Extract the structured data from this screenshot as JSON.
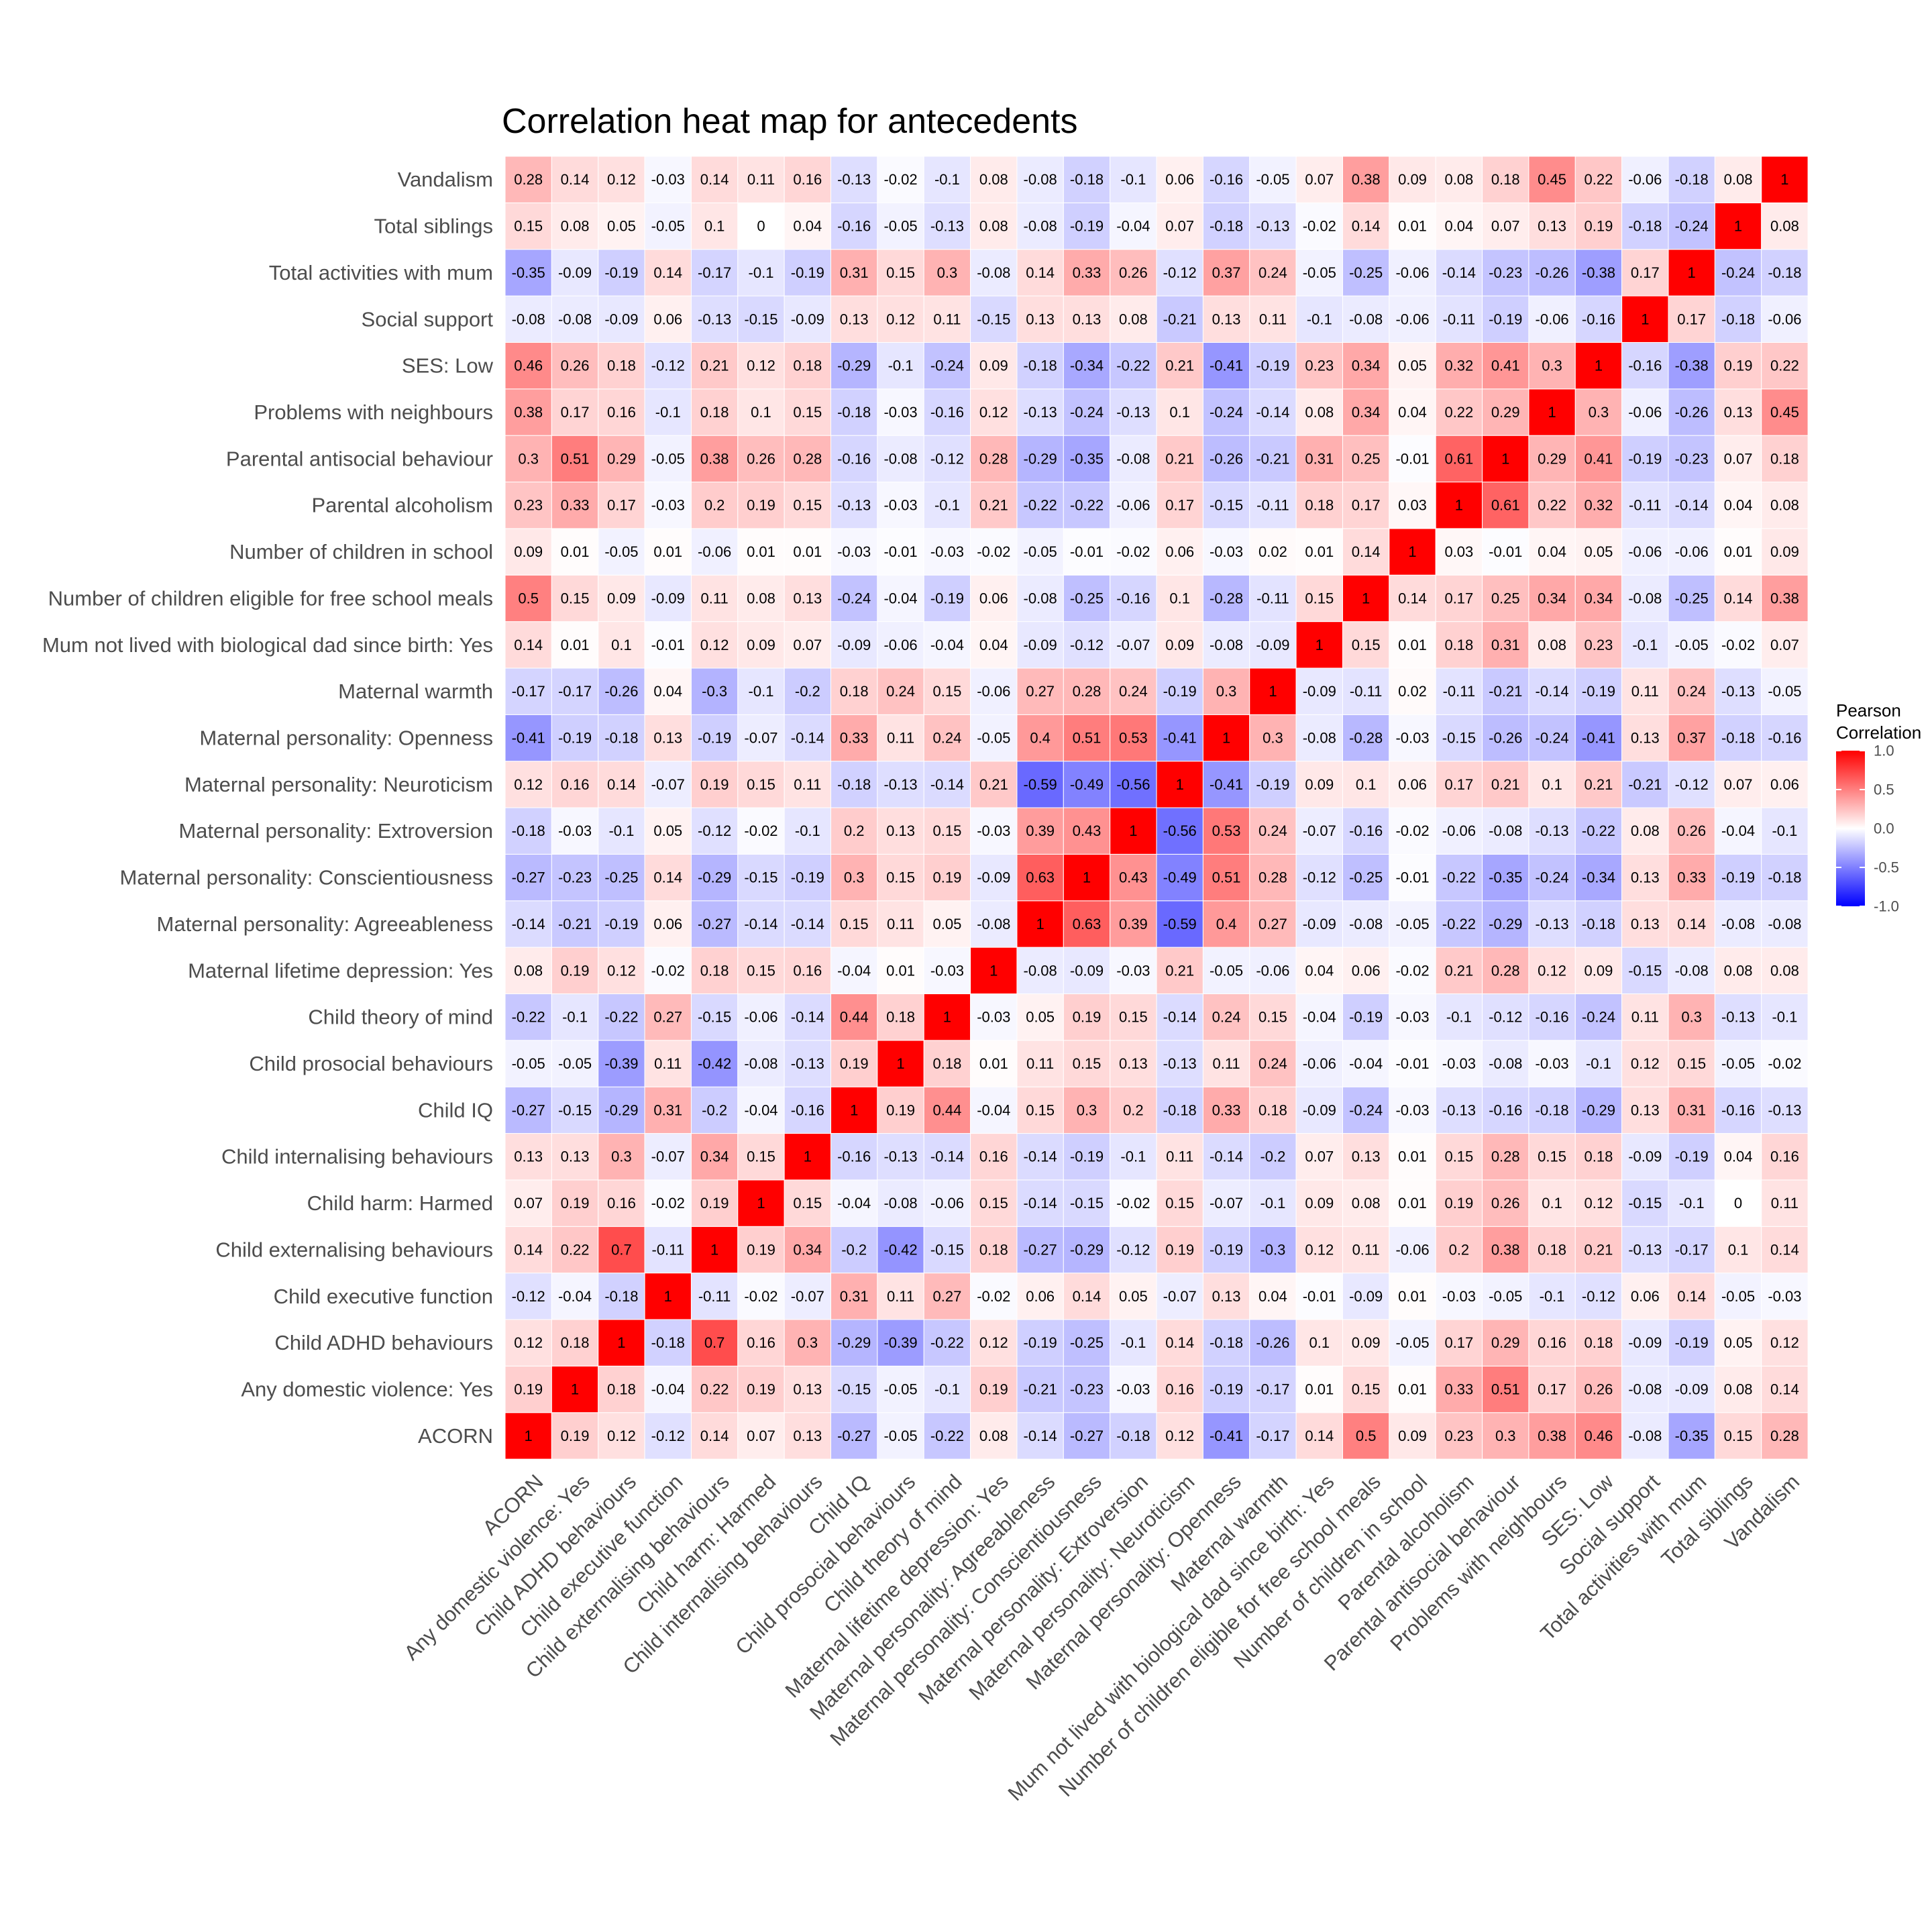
{
  "chart_data": {
    "type": "heatmap",
    "title": "Correlation heat map for antecedents",
    "variables": [
      "ACORN",
      "Any domestic violence: Yes",
      "Child ADHD behaviours",
      "Child executive function",
      "Child externalising behaviours",
      "Child harm: Harmed",
      "Child internalising behaviours",
      "Child IQ",
      "Child prosocial behaviours",
      "Child theory of mind",
      "Maternal lifetime depression: Yes",
      "Maternal personality: Agreeableness",
      "Maternal personality: Conscientiousness",
      "Maternal personality: Extroversion",
      "Maternal personality: Neuroticism",
      "Maternal personality: Openness",
      "Maternal warmth",
      "Mum not lived with biological dad since birth: Yes",
      "Number of children eligible for free school meals",
      "Number of children in school",
      "Parental alcoholism",
      "Parental antisocial behaviour",
      "Problems with neighbours",
      "SES: Low",
      "Social support",
      "Total activities with mum",
      "Total siblings",
      "Vandalism"
    ],
    "matrix": [
      [
        1,
        0.19,
        0.12,
        -0.12,
        0.14,
        0.07,
        0.13,
        -0.27,
        -0.05,
        -0.22,
        0.08,
        -0.14,
        -0.27,
        -0.18,
        0.12,
        -0.41,
        -0.17,
        0.14,
        0.5,
        0.09,
        0.23,
        0.3,
        0.38,
        0.46,
        -0.08,
        -0.35,
        0.15,
        0.28
      ],
      [
        0.19,
        1,
        0.18,
        -0.04,
        0.22,
        0.19,
        0.13,
        -0.15,
        -0.05,
        -0.1,
        0.19,
        -0.21,
        -0.23,
        -0.03,
        0.16,
        -0.19,
        -0.17,
        0.01,
        0.15,
        0.01,
        0.33,
        0.51,
        0.17,
        0.26,
        -0.08,
        -0.09,
        0.08,
        0.14
      ],
      [
        0.12,
        0.18,
        1,
        -0.18,
        0.7,
        0.16,
        0.3,
        -0.29,
        -0.39,
        -0.22,
        0.12,
        -0.19,
        -0.25,
        -0.1,
        0.14,
        -0.18,
        -0.26,
        0.1,
        0.09,
        -0.05,
        0.17,
        0.29,
        0.16,
        0.18,
        -0.09,
        -0.19,
        0.05,
        0.12
      ],
      [
        -0.12,
        -0.04,
        -0.18,
        1,
        -0.11,
        -0.02,
        -0.07,
        0.31,
        0.11,
        0.27,
        -0.02,
        0.06,
        0.14,
        0.05,
        -0.07,
        0.13,
        0.04,
        -0.01,
        -0.09,
        0.01,
        -0.03,
        -0.05,
        -0.1,
        -0.12,
        0.06,
        0.14,
        -0.05,
        -0.03
      ],
      [
        0.14,
        0.22,
        0.7,
        -0.11,
        1,
        0.19,
        0.34,
        -0.2,
        -0.42,
        -0.15,
        0.18,
        -0.27,
        -0.29,
        -0.12,
        0.19,
        -0.19,
        -0.3,
        0.12,
        0.11,
        -0.06,
        0.2,
        0.38,
        0.18,
        0.21,
        -0.13,
        -0.17,
        0.1,
        0.14
      ],
      [
        0.07,
        0.19,
        0.16,
        -0.02,
        0.19,
        1,
        0.15,
        -0.04,
        -0.08,
        -0.06,
        0.15,
        -0.14,
        -0.15,
        -0.02,
        0.15,
        -0.07,
        -0.1,
        0.09,
        0.08,
        0.01,
        0.19,
        0.26,
        0.1,
        0.12,
        -0.15,
        -0.1,
        0,
        0.11
      ],
      [
        0.13,
        0.13,
        0.3,
        -0.07,
        0.34,
        0.15,
        1,
        -0.16,
        -0.13,
        -0.14,
        0.16,
        -0.14,
        -0.19,
        -0.1,
        0.11,
        -0.14,
        -0.2,
        0.07,
        0.13,
        0.01,
        0.15,
        0.28,
        0.15,
        0.18,
        -0.09,
        -0.19,
        0.04,
        0.16
      ],
      [
        -0.27,
        -0.15,
        -0.29,
        0.31,
        -0.2,
        -0.04,
        -0.16,
        1,
        0.19,
        0.44,
        -0.04,
        0.15,
        0.3,
        0.2,
        -0.18,
        0.33,
        0.18,
        -0.09,
        -0.24,
        -0.03,
        -0.13,
        -0.16,
        -0.18,
        -0.29,
        0.13,
        0.31,
        -0.16,
        -0.13
      ],
      [
        -0.05,
        -0.05,
        -0.39,
        0.11,
        -0.42,
        -0.08,
        -0.13,
        0.19,
        1,
        0.18,
        0.01,
        0.11,
        0.15,
        0.13,
        -0.13,
        0.11,
        0.24,
        -0.06,
        -0.04,
        -0.01,
        -0.03,
        -0.08,
        -0.03,
        -0.1,
        0.12,
        0.15,
        -0.05,
        -0.02
      ],
      [
        -0.22,
        -0.1,
        -0.22,
        0.27,
        -0.15,
        -0.06,
        -0.14,
        0.44,
        0.18,
        1,
        -0.03,
        0.05,
        0.19,
        0.15,
        -0.14,
        0.24,
        0.15,
        -0.04,
        -0.19,
        -0.03,
        -0.1,
        -0.12,
        -0.16,
        -0.24,
        0.11,
        0.3,
        -0.13,
        -0.1
      ],
      [
        0.08,
        0.19,
        0.12,
        -0.02,
        0.18,
        0.15,
        0.16,
        -0.04,
        0.01,
        -0.03,
        1,
        -0.08,
        -0.09,
        -0.03,
        0.21,
        -0.05,
        -0.06,
        0.04,
        0.06,
        -0.02,
        0.21,
        0.28,
        0.12,
        0.09,
        -0.15,
        -0.08,
        0.08,
        0.08
      ],
      [
        -0.14,
        -0.21,
        -0.19,
        0.06,
        -0.27,
        -0.14,
        -0.14,
        0.15,
        0.11,
        0.05,
        -0.08,
        1,
        0.63,
        0.39,
        -0.59,
        0.4,
        0.27,
        -0.09,
        -0.08,
        -0.05,
        -0.22,
        -0.29,
        -0.13,
        -0.18,
        0.13,
        0.14,
        -0.08,
        -0.08
      ],
      [
        -0.27,
        -0.23,
        -0.25,
        0.14,
        -0.29,
        -0.15,
        -0.19,
        0.3,
        0.15,
        0.19,
        -0.09,
        0.63,
        1,
        0.43,
        -0.49,
        0.51,
        0.28,
        -0.12,
        -0.25,
        -0.01,
        -0.22,
        -0.35,
        -0.24,
        -0.34,
        0.13,
        0.33,
        -0.19,
        -0.18
      ],
      [
        -0.18,
        -0.03,
        -0.1,
        0.05,
        -0.12,
        -0.02,
        -0.1,
        0.2,
        0.13,
        0.15,
        -0.03,
        0.39,
        0.43,
        1,
        -0.56,
        0.53,
        0.24,
        -0.07,
        -0.16,
        -0.02,
        -0.06,
        -0.08,
        -0.13,
        -0.22,
        0.08,
        0.26,
        -0.04,
        -0.1
      ],
      [
        0.12,
        0.16,
        0.14,
        -0.07,
        0.19,
        0.15,
        0.11,
        -0.18,
        -0.13,
        -0.14,
        0.21,
        -0.59,
        -0.49,
        -0.56,
        1,
        -0.41,
        -0.19,
        0.09,
        0.1,
        0.06,
        0.17,
        0.21,
        0.1,
        0.21,
        -0.21,
        -0.12,
        0.07,
        0.06
      ],
      [
        -0.41,
        -0.19,
        -0.18,
        0.13,
        -0.19,
        -0.07,
        -0.14,
        0.33,
        0.11,
        0.24,
        -0.05,
        0.4,
        0.51,
        0.53,
        -0.41,
        1,
        0.3,
        -0.08,
        -0.28,
        -0.03,
        -0.15,
        -0.26,
        -0.24,
        -0.41,
        0.13,
        0.37,
        -0.18,
        -0.16
      ],
      [
        -0.17,
        -0.17,
        -0.26,
        0.04,
        -0.3,
        -0.1,
        -0.2,
        0.18,
        0.24,
        0.15,
        -0.06,
        0.27,
        0.28,
        0.24,
        -0.19,
        0.3,
        1,
        -0.09,
        -0.11,
        0.02,
        -0.11,
        -0.21,
        -0.14,
        -0.19,
        0.11,
        0.24,
        -0.13,
        -0.05
      ],
      [
        0.14,
        0.01,
        0.1,
        -0.01,
        0.12,
        0.09,
        0.07,
        -0.09,
        -0.06,
        -0.04,
        0.04,
        -0.09,
        -0.12,
        -0.07,
        0.09,
        -0.08,
        -0.09,
        1,
        0.15,
        0.01,
        0.18,
        0.31,
        0.08,
        0.23,
        -0.1,
        -0.05,
        -0.02,
        0.07
      ],
      [
        0.5,
        0.15,
        0.09,
        -0.09,
        0.11,
        0.08,
        0.13,
        -0.24,
        -0.04,
        -0.19,
        0.06,
        -0.08,
        -0.25,
        -0.16,
        0.1,
        -0.28,
        -0.11,
        0.15,
        1,
        0.14,
        0.17,
        0.25,
        0.34,
        0.34,
        -0.08,
        -0.25,
        0.14,
        0.38
      ],
      [
        0.09,
        0.01,
        -0.05,
        0.01,
        -0.06,
        0.01,
        0.01,
        -0.03,
        -0.01,
        -0.03,
        -0.02,
        -0.05,
        -0.01,
        -0.02,
        0.06,
        -0.03,
        0.02,
        0.01,
        0.14,
        1,
        0.03,
        -0.01,
        0.04,
        0.05,
        -0.06,
        -0.06,
        0.01,
        0.09
      ],
      [
        0.23,
        0.33,
        0.17,
        -0.03,
        0.2,
        0.19,
        0.15,
        -0.13,
        -0.03,
        -0.1,
        0.21,
        -0.22,
        -0.22,
        -0.06,
        0.17,
        -0.15,
        -0.11,
        0.18,
        0.17,
        0.03,
        1,
        0.61,
        0.22,
        0.32,
        -0.11,
        -0.14,
        0.04,
        0.08
      ],
      [
        0.3,
        0.51,
        0.29,
        -0.05,
        0.38,
        0.26,
        0.28,
        -0.16,
        -0.08,
        -0.12,
        0.28,
        -0.29,
        -0.35,
        -0.08,
        0.21,
        -0.26,
        -0.21,
        0.31,
        0.25,
        -0.01,
        0.61,
        1,
        0.29,
        0.41,
        -0.19,
        -0.23,
        0.07,
        0.18
      ],
      [
        0.38,
        0.17,
        0.16,
        -0.1,
        0.18,
        0.1,
        0.15,
        -0.18,
        -0.03,
        -0.16,
        0.12,
        -0.13,
        -0.24,
        -0.13,
        0.1,
        -0.24,
        -0.14,
        0.08,
        0.34,
        0.04,
        0.22,
        0.29,
        1,
        0.3,
        -0.06,
        -0.26,
        0.13,
        0.45
      ],
      [
        0.46,
        0.26,
        0.18,
        -0.12,
        0.21,
        0.12,
        0.18,
        -0.29,
        -0.1,
        -0.24,
        0.09,
        -0.18,
        -0.34,
        -0.22,
        0.21,
        -0.41,
        -0.19,
        0.23,
        0.34,
        0.05,
        0.32,
        0.41,
        0.3,
        1,
        -0.16,
        -0.38,
        0.19,
        0.22
      ],
      [
        -0.08,
        -0.08,
        -0.09,
        0.06,
        -0.13,
        -0.15,
        -0.09,
        0.13,
        0.12,
        0.11,
        -0.15,
        0.13,
        0.13,
        0.08,
        -0.21,
        0.13,
        0.11,
        -0.1,
        -0.08,
        -0.06,
        -0.11,
        -0.19,
        -0.06,
        -0.16,
        1,
        0.17,
        -0.18,
        -0.06
      ],
      [
        -0.35,
        -0.09,
        -0.19,
        0.14,
        -0.17,
        -0.1,
        -0.19,
        0.31,
        0.15,
        0.3,
        -0.08,
        0.14,
        0.33,
        0.26,
        -0.12,
        0.37,
        0.24,
        -0.05,
        -0.25,
        -0.06,
        -0.14,
        -0.23,
        -0.26,
        -0.38,
        0.17,
        1,
        -0.24,
        -0.18
      ],
      [
        0.15,
        0.08,
        0.05,
        -0.05,
        0.1,
        0,
        0.04,
        -0.16,
        -0.05,
        -0.13,
        0.08,
        -0.08,
        -0.19,
        -0.04,
        0.07,
        -0.18,
        -0.13,
        -0.02,
        0.14,
        0.01,
        0.04,
        0.07,
        0.13,
        0.19,
        -0.18,
        -0.24,
        1,
        0.08
      ],
      [
        0.28,
        0.14,
        0.12,
        -0.03,
        0.14,
        0.11,
        0.16,
        -0.13,
        -0.02,
        -0.1,
        0.08,
        -0.08,
        -0.18,
        -0.1,
        0.06,
        -0.16,
        -0.05,
        0.07,
        0.38,
        0.09,
        0.08,
        0.18,
        0.45,
        0.22,
        -0.06,
        -0.18,
        0.08,
        1
      ]
    ],
    "legend": {
      "title_lines": [
        "Pearson",
        "Correlation"
      ],
      "ticks": [
        "1.0",
        "0.5",
        "0.0",
        "-0.5",
        "-1.0"
      ],
      "tick_values": [
        1,
        0.5,
        0,
        -0.5,
        -1
      ],
      "range": [
        -1,
        1
      ],
      "placement": "right"
    },
    "colors": {
      "low": "#0000ff",
      "mid": "#ffffff",
      "high": "#ff0000",
      "axis_text": "#4d4d4d",
      "cell_border": "#ffffff"
    },
    "grid": false
  }
}
